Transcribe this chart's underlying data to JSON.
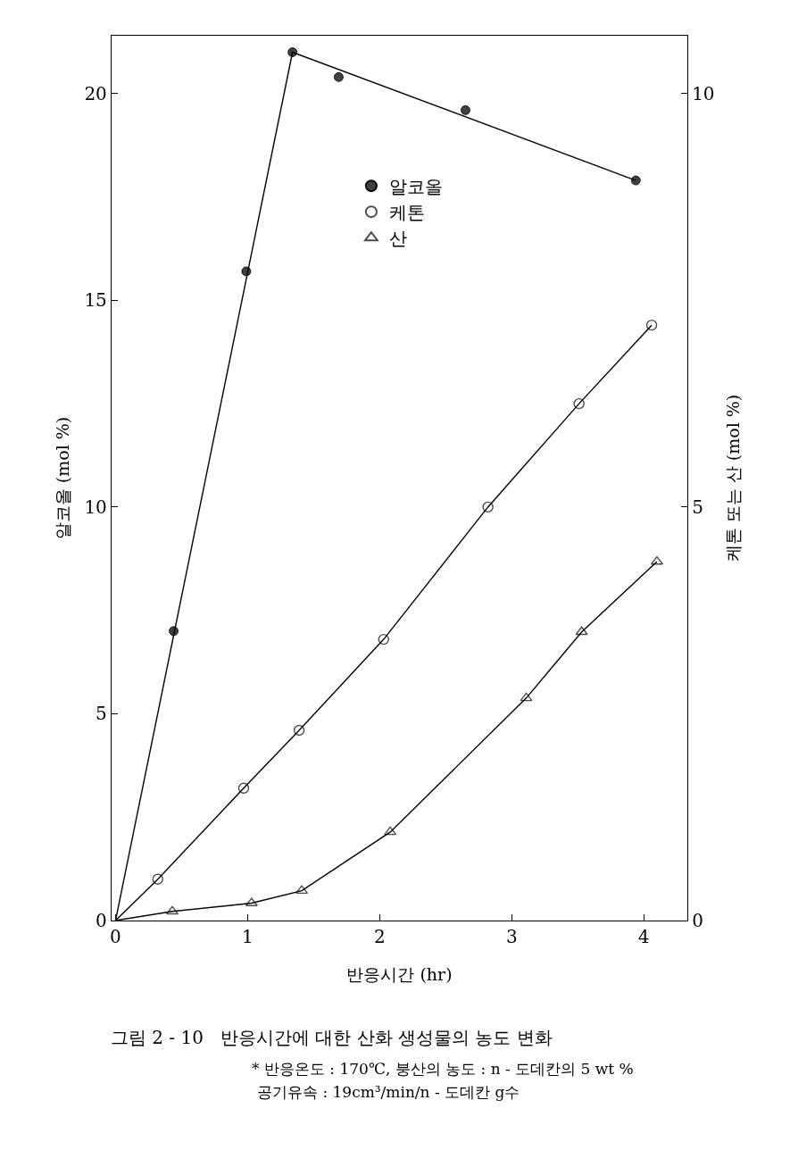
{
  "chart_data": {
    "type": "scatter",
    "title": "그림 2 - 10   반응시간에 대한 산화 생성물의 농도 변화",
    "xlabel": "반응시간 (hr)",
    "ylabel": "알코올 (mol %)",
    "y2label": "케톤 또는 산 (mol %)",
    "annotations": [
      "* 반응온도 : 170℃, 붕산의 농도 : n - 도데칸의 5 wt %",
      "공기유속 : 19cm³/min/n - 도데칸 g수"
    ],
    "series": [
      {
        "name": "알코올",
        "marker": "circle",
        "color": "#404040",
        "x": [
          0.44,
          0.99,
          1.34,
          1.69,
          2.65,
          3.94
        ],
        "values": [
          7.0,
          15.7,
          21.0,
          20.4,
          19.6,
          17.9
        ]
      },
      {
        "type": "line",
        "marker": "none",
        "color": "#000000",
        "x": [
          0,
          1.34,
          3.94
        ],
        "values": [
          0,
          21.0,
          17.9
        ]
      },
      {
        "name": "케톤",
        "type": "line",
        "marker": "circle",
        "axis": "y2",
        "color": "#000000",
        "x": [
          0,
          0.32,
          0.97,
          1.39,
          2.03,
          2.82,
          3.51,
          4.06
        ],
        "values": [
          0,
          0.5,
          1.6,
          2.3,
          3.4,
          5.0,
          6.25,
          7.2
        ]
      },
      {
        "name": "산",
        "type": "line",
        "marker": "triangle",
        "axis": "y2",
        "color": "#000000",
        "x": [
          0,
          0.43,
          1.03,
          1.41,
          2.08,
          3.11,
          3.53,
          4.1
        ],
        "values": [
          0,
          0.11,
          0.21,
          0.36,
          1.07,
          2.69,
          3.49,
          4.34
        ]
      }
    ],
    "xlim": [
      -0.03,
      4.33
    ],
    "xticks": [
      0,
      1,
      2,
      3,
      4
    ],
    "ylim": [
      0,
      21.4
    ],
    "yticks": [
      0,
      5,
      10,
      15,
      20
    ],
    "y2lim": [
      0,
      10.7
    ],
    "y2ticks": [
      0,
      5,
      10
    ],
    "grid": false,
    "legend": "top"
  }
}
